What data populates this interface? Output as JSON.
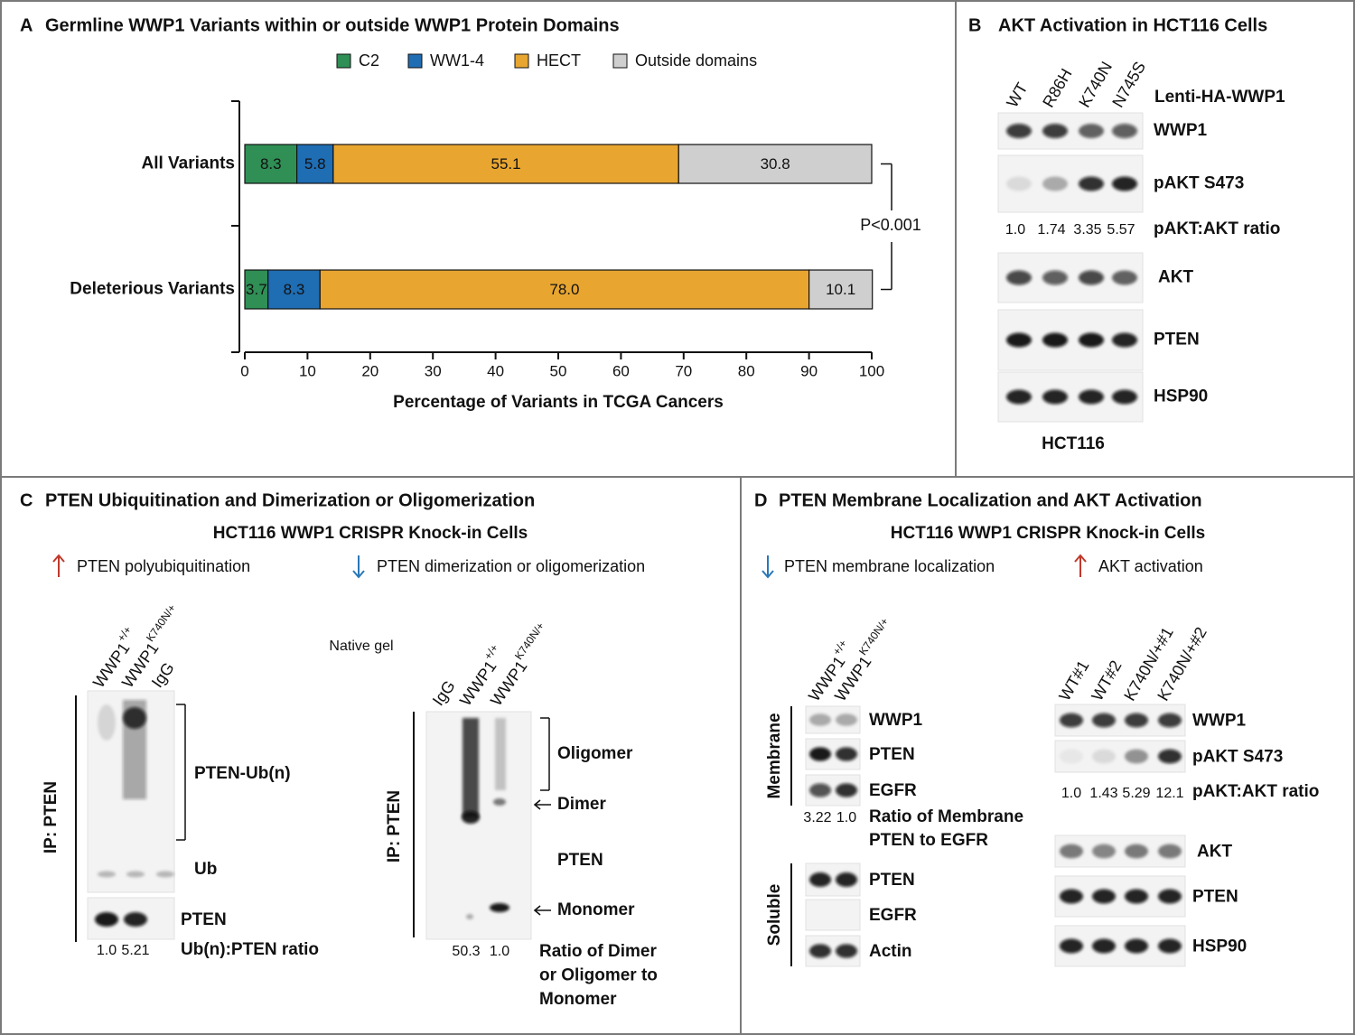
{
  "chart_data": {
    "type": "bar",
    "orientation": "horizontal",
    "stacked": true,
    "panel": "A",
    "title": "Germline WWP1 Variants within or outside WWP1 Protein Domains",
    "categories": [
      "All Variants",
      "Deleterious Variants"
    ],
    "series": [
      {
        "name": "C2",
        "color": "#2f8f55",
        "values": [
          8.3,
          3.7
        ]
      },
      {
        "name": "WW1-4",
        "color": "#1f6db3",
        "values": [
          5.8,
          8.3
        ]
      },
      {
        "name": "HECT",
        "color": "#e8a631",
        "values": [
          55.1,
          78.0
        ],
        "value_labels": [
          "55.1",
          "78.0"
        ]
      },
      {
        "name": "Outside domains",
        "color": "#cfcfcf",
        "values": [
          30.8,
          10.1
        ]
      }
    ],
    "xlim": [
      0,
      100
    ],
    "xticks": [
      0,
      10,
      20,
      30,
      40,
      50,
      60,
      70,
      80,
      90,
      100
    ],
    "xlabel": "Percentage of Variants in TCGA Cancers",
    "annotation": "P<0.001",
    "legend": "top"
  },
  "panel_b": {
    "letter": "B",
    "title": "AKT Activation in HCT116 Cells",
    "lanes": [
      "WT",
      "R86H",
      "K740N",
      "N745S"
    ],
    "construct": "Lenti-HA-WWP1",
    "rows": [
      "WWP1",
      "pAKT S473",
      "AKT",
      "PTEN",
      "HSP90"
    ],
    "ratios": [
      "1.0",
      "1.74",
      "3.35",
      "5.57"
    ],
    "ratio_label": "pAKT:AKT ratio",
    "cell_line": "HCT116"
  },
  "panel_c": {
    "letter": "C",
    "title": "PTEN Ubiquitination and Dimerization or Oligomerization",
    "subtitle": "HCT116 WWP1 CRISPR Knock-in Cells",
    "effects": [
      {
        "label": "PTEN polyubiquitination",
        "direction": "up"
      },
      {
        "label": "PTEN dimerization or oligomerization",
        "direction": "down"
      }
    ],
    "ub_blot": {
      "lanes": [
        {
          "name": "WWP1",
          "sup": "+/+"
        },
        {
          "name": "WWP1",
          "sup": "K740N/+"
        },
        "IgG"
      ],
      "ip": "IP: PTEN",
      "labels": [
        "PTEN-Ub(n)",
        "Ub",
        "PTEN"
      ],
      "ratios": [
        "1.0",
        "5.21"
      ],
      "ratio_label": "Ub(n):PTEN ratio"
    },
    "native_blot": {
      "title": "Native gel",
      "lanes": [
        "IgG",
        {
          "name": "WWP1",
          "sup": "+/+"
        },
        {
          "name": "WWP1",
          "sup": "K740N/+"
        }
      ],
      "ip": "IP: PTEN",
      "labels": [
        "Oligomer",
        "Dimer",
        "PTEN",
        "Monomer"
      ],
      "ratios": [
        "50.3",
        "1.0"
      ],
      "ratio_label": [
        "Ratio of Dimer",
        "or Oligomer to",
        "Monomer"
      ]
    }
  },
  "panel_d": {
    "letter": "D",
    "title": "PTEN Membrane Localization and AKT Activation",
    "subtitle": "HCT116 WWP1 CRISPR Knock-in Cells",
    "effects": [
      {
        "label": "PTEN membrane localization",
        "direction": "down"
      },
      {
        "label": "AKT activation",
        "direction": "up"
      }
    ],
    "fraction_blot": {
      "lanes": [
        {
          "name": "WWP1",
          "sup": "+/+"
        },
        {
          "name": "WWP1",
          "sup": "K740N/+"
        }
      ],
      "groups": [
        {
          "name": "Membrane",
          "rows": [
            "WWP1",
            "PTEN",
            "EGFR"
          ]
        },
        {
          "name": "Soluble",
          "rows": [
            "PTEN",
            "EGFR",
            "Actin"
          ]
        }
      ],
      "ratios": [
        "3.22",
        "1.0"
      ],
      "ratio_label": [
        "Ratio of Membrane",
        "PTEN to EGFR"
      ]
    },
    "akt_blot": {
      "lanes": [
        "WT#1",
        "WT#2",
        "K740N/+#1",
        "K740N/+#2"
      ],
      "rows": [
        "WWP1",
        "pAKT S473",
        "AKT",
        "PTEN",
        "HSP90"
      ],
      "ratios": [
        "1.0",
        "1.43",
        "5.29",
        "12.1"
      ],
      "ratio_label": "pAKT:AKT ratio"
    }
  }
}
